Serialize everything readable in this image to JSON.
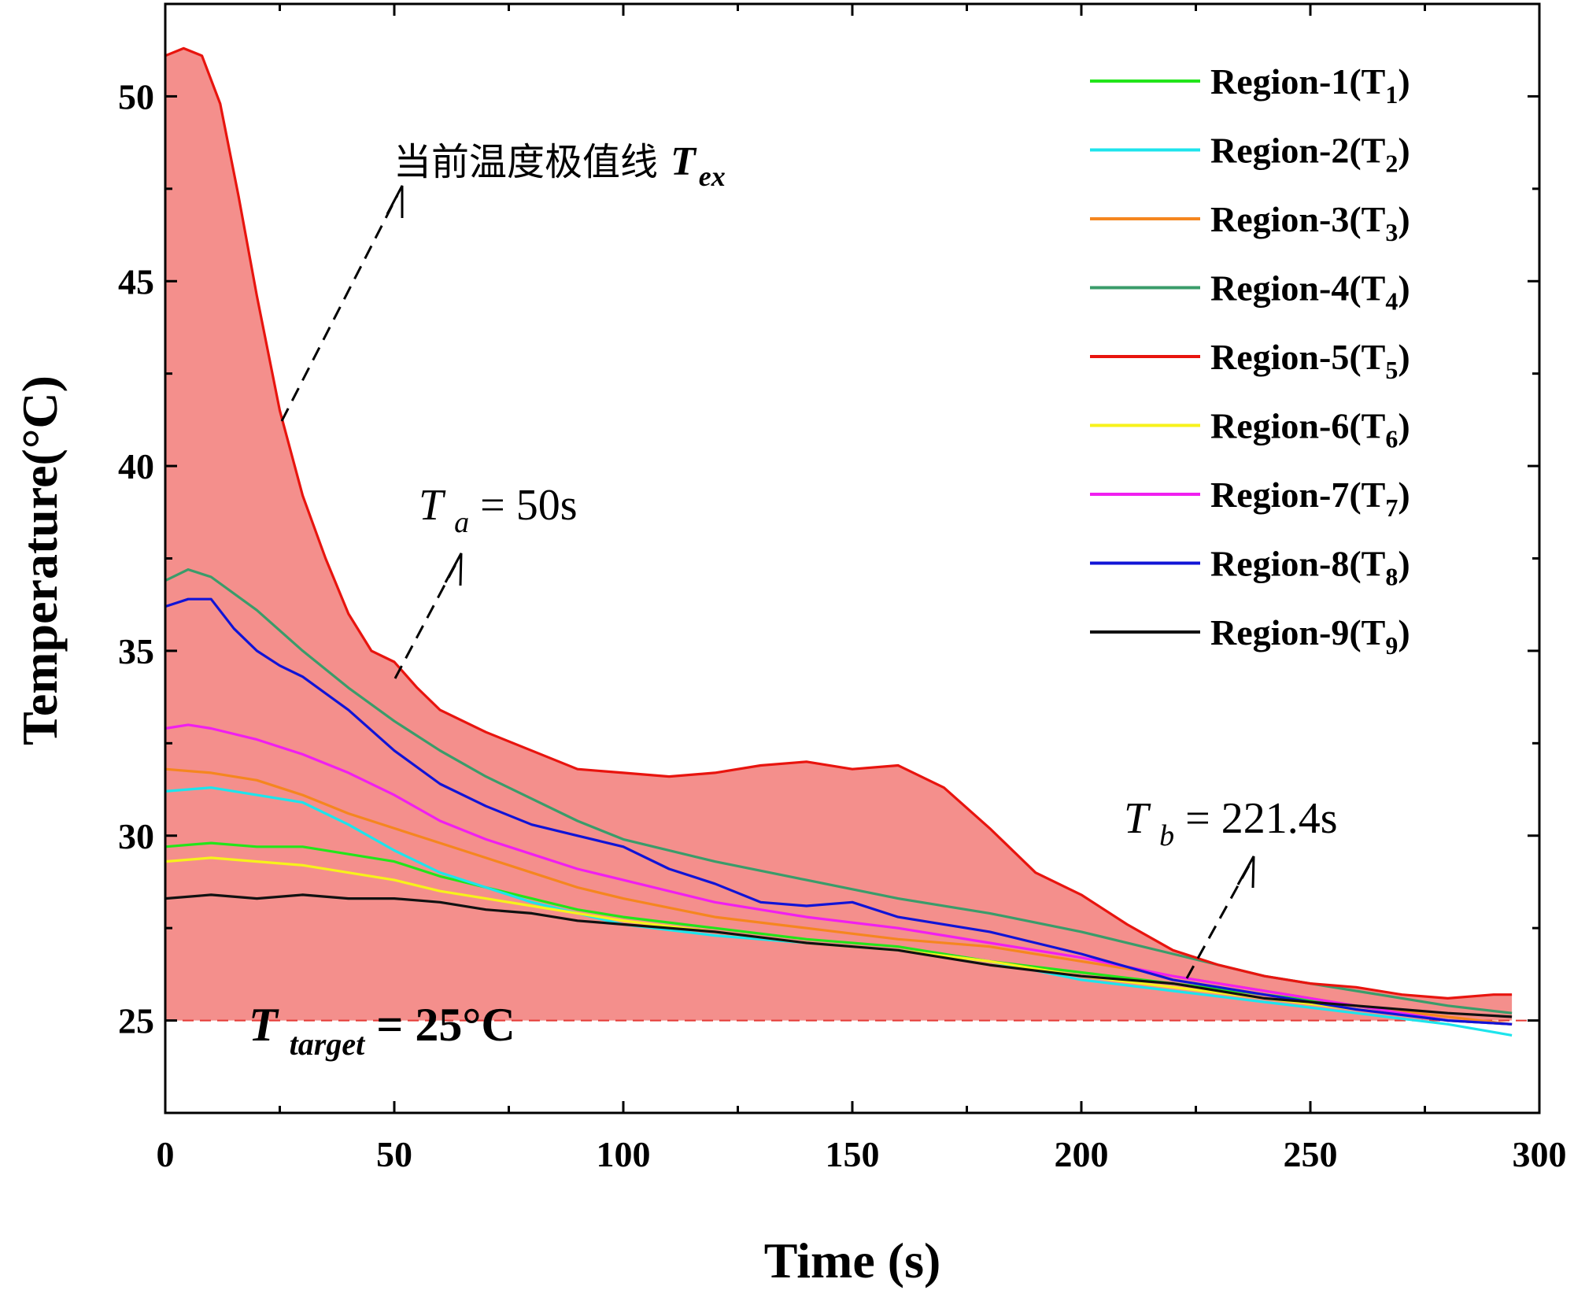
{
  "chart_data": {
    "type": "line",
    "xlabel": "Time (s)",
    "ylabel": "Temperature(°C)",
    "xlim": [
      0,
      300
    ],
    "ylim": [
      22.5,
      52.5
    ],
    "xticks": [
      0,
      50,
      100,
      150,
      200,
      250,
      300
    ],
    "yticks": [
      25,
      30,
      35,
      40,
      45,
      50
    ],
    "grid": false,
    "legend_position": "top-right",
    "target_line": {
      "y": 25,
      "color": "#e53935"
    },
    "fill_between": {
      "upper": "Region-5(T",
      "lower": 25,
      "color": "#f48f8c"
    },
    "series": [
      {
        "name": "Region-1(T",
        "sub": "1",
        "color": "#22e51a",
        "x": [
          0,
          10,
          20,
          30,
          40,
          50,
          60,
          70,
          80,
          90,
          100,
          120,
          140,
          160,
          180,
          200,
          220,
          240,
          260,
          280,
          294
        ],
        "y": [
          29.7,
          29.8,
          29.7,
          29.7,
          29.5,
          29.3,
          28.9,
          28.6,
          28.3,
          28.0,
          27.8,
          27.5,
          27.2,
          27.0,
          26.6,
          26.3,
          26.0,
          25.7,
          25.4,
          25.0,
          24.9
        ]
      },
      {
        "name": "Region-2(T",
        "sub": "2",
        "color": "#1de4ec",
        "x": [
          0,
          10,
          20,
          30,
          40,
          50,
          60,
          70,
          80,
          90,
          100,
          120,
          140,
          160,
          180,
          200,
          220,
          240,
          260,
          280,
          294
        ],
        "y": [
          31.2,
          31.3,
          31.1,
          30.9,
          30.3,
          29.6,
          29.0,
          28.6,
          28.2,
          27.9,
          27.6,
          27.3,
          27.1,
          26.9,
          26.6,
          26.1,
          25.8,
          25.5,
          25.2,
          24.9,
          24.6
        ]
      },
      {
        "name": "Region-3(T",
        "sub": "3",
        "color": "#f5861f",
        "x": [
          0,
          10,
          20,
          30,
          40,
          50,
          60,
          70,
          80,
          90,
          100,
          120,
          140,
          160,
          180,
          200,
          220,
          240,
          260,
          280,
          294
        ],
        "y": [
          31.8,
          31.7,
          31.5,
          31.1,
          30.6,
          30.2,
          29.8,
          29.4,
          29.0,
          28.6,
          28.3,
          27.8,
          27.5,
          27.2,
          27.0,
          26.6,
          26.2,
          25.8,
          25.4,
          25.1,
          24.9
        ]
      },
      {
        "name": "Region-4(T",
        "sub": "4",
        "color": "#3a9c6a",
        "x": [
          0,
          5,
          10,
          20,
          30,
          40,
          50,
          60,
          70,
          80,
          90,
          100,
          120,
          140,
          160,
          180,
          200,
          220,
          240,
          260,
          280,
          294
        ],
        "y": [
          36.9,
          37.2,
          37.0,
          36.1,
          35.0,
          34.0,
          33.1,
          32.3,
          31.6,
          31.0,
          30.4,
          29.9,
          29.3,
          28.8,
          28.3,
          27.9,
          27.4,
          26.8,
          26.2,
          25.8,
          25.4,
          25.2
        ]
      },
      {
        "name": "Region-5(T",
        "sub": "5",
        "color": "#e8140e",
        "x": [
          0,
          4,
          8,
          12,
          16,
          20,
          25,
          30,
          35,
          40,
          45,
          50,
          55,
          60,
          70,
          80,
          90,
          100,
          110,
          120,
          130,
          140,
          150,
          160,
          170,
          180,
          190,
          200,
          210,
          220,
          230,
          240,
          250,
          260,
          270,
          280,
          290,
          294
        ],
        "y": [
          51.1,
          51.3,
          51.1,
          49.8,
          47.3,
          44.6,
          41.5,
          39.2,
          37.5,
          36.0,
          35.0,
          34.7,
          34.0,
          33.4,
          32.8,
          32.3,
          31.8,
          31.7,
          31.6,
          31.7,
          31.9,
          32.0,
          31.8,
          31.9,
          31.3,
          30.2,
          29.0,
          28.4,
          27.6,
          26.9,
          26.5,
          26.2,
          26.0,
          25.9,
          25.7,
          25.6,
          25.7,
          25.7
        ]
      },
      {
        "name": "Region-6(T",
        "sub": "6",
        "color": "#f7f21b",
        "x": [
          0,
          10,
          20,
          30,
          40,
          50,
          60,
          70,
          80,
          90,
          100,
          120,
          140,
          160,
          180,
          200,
          220,
          240,
          260,
          280,
          294
        ],
        "y": [
          29.3,
          29.4,
          29.3,
          29.2,
          29.0,
          28.8,
          28.5,
          28.3,
          28.1,
          27.9,
          27.7,
          27.4,
          27.1,
          26.9,
          26.6,
          26.2,
          25.9,
          25.6,
          25.3,
          25.0,
          24.9
        ]
      },
      {
        "name": "Region-7(T",
        "sub": "7",
        "color": "#f01ff0",
        "x": [
          0,
          5,
          10,
          20,
          30,
          40,
          50,
          60,
          70,
          80,
          90,
          100,
          120,
          140,
          160,
          180,
          200,
          220,
          240,
          260,
          280,
          294
        ],
        "y": [
          32.9,
          33.0,
          32.9,
          32.6,
          32.2,
          31.7,
          31.1,
          30.4,
          29.9,
          29.5,
          29.1,
          28.8,
          28.2,
          27.8,
          27.5,
          27.1,
          26.7,
          26.2,
          25.8,
          25.4,
          25.0,
          24.9
        ]
      },
      {
        "name": "Region-8(T",
        "sub": "8",
        "color": "#1014d6",
        "x": [
          0,
          5,
          10,
          15,
          20,
          25,
          30,
          40,
          50,
          60,
          70,
          80,
          90,
          100,
          110,
          120,
          130,
          140,
          150,
          160,
          180,
          200,
          220,
          240,
          260,
          280,
          294
        ],
        "y": [
          36.2,
          36.4,
          36.4,
          35.6,
          35.0,
          34.6,
          34.3,
          33.4,
          32.3,
          31.4,
          30.8,
          30.3,
          30.0,
          29.7,
          29.1,
          28.7,
          28.2,
          28.1,
          28.2,
          27.8,
          27.4,
          26.8,
          26.1,
          25.7,
          25.3,
          25.0,
          24.9
        ]
      },
      {
        "name": "Region-9(T",
        "sub": "9",
        "color": "#111111",
        "x": [
          0,
          10,
          20,
          30,
          40,
          50,
          60,
          70,
          80,
          90,
          100,
          120,
          140,
          160,
          180,
          200,
          220,
          240,
          260,
          280,
          294
        ],
        "y": [
          28.3,
          28.4,
          28.3,
          28.4,
          28.3,
          28.3,
          28.2,
          28.0,
          27.9,
          27.7,
          27.6,
          27.4,
          27.1,
          26.9,
          26.5,
          26.2,
          26.0,
          25.6,
          25.4,
          25.2,
          25.1
        ]
      }
    ],
    "annotations": {
      "tex": {
        "cn": "当前温度极值线",
        "sym": "T",
        "sub": "ex"
      },
      "ta": {
        "sym": "T",
        "sub": "a",
        "rest": " = 50s"
      },
      "tb": {
        "sym": "T",
        "sub": "b",
        "rest": " = 221.4s"
      },
      "ttarget": {
        "sym": "T",
        "sub": "target",
        "rest": " = 25°C"
      }
    }
  }
}
